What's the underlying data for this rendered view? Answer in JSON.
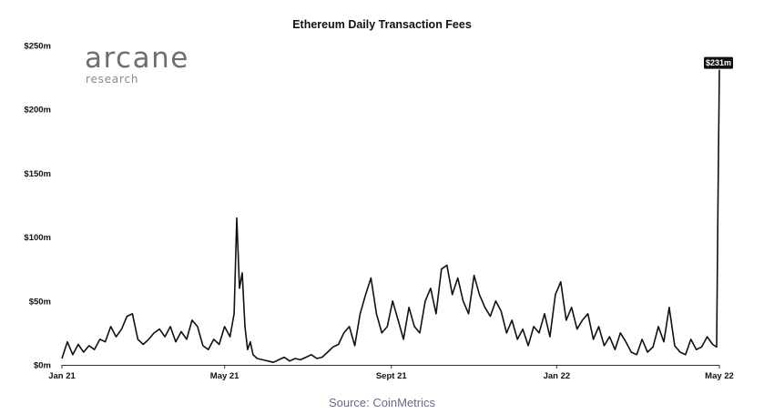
{
  "chart_data": {
    "type": "line",
    "title": "Ethereum Daily Transaction Fees",
    "xlabel": "",
    "ylabel": "",
    "x_range": [
      "2021-01-01",
      "2022-05-01"
    ],
    "ylim": [
      0,
      250
    ],
    "y_unit": "$m",
    "y_ticks": [
      {
        "value": 0,
        "label": "$0m"
      },
      {
        "value": 50,
        "label": "$50m"
      },
      {
        "value": 100,
        "label": "$100m"
      },
      {
        "value": 150,
        "label": "$150m"
      },
      {
        "value": 200,
        "label": "$200m"
      },
      {
        "value": 250,
        "label": "$250m"
      }
    ],
    "x_ticks": [
      {
        "date": "2021-01-01",
        "label": "Jan 21"
      },
      {
        "date": "2021-05-01",
        "label": "May 21"
      },
      {
        "date": "2021-09-01",
        "label": "Sept 21"
      },
      {
        "date": "2022-01-01",
        "label": "Jan 22"
      },
      {
        "date": "2022-05-01",
        "label": "May 22"
      }
    ],
    "grid": false,
    "line_color": "#111111",
    "series": [
      {
        "x": [
          "2021-01-01",
          "2021-01-05",
          "2021-01-09",
          "2021-01-13",
          "2021-01-17",
          "2021-01-21",
          "2021-01-25",
          "2021-01-29",
          "2021-02-02",
          "2021-02-06",
          "2021-02-10",
          "2021-02-14",
          "2021-02-18",
          "2021-02-22",
          "2021-02-26",
          "2021-03-02",
          "2021-03-06",
          "2021-03-10",
          "2021-03-14",
          "2021-03-18",
          "2021-03-22",
          "2021-03-26",
          "2021-03-30",
          "2021-04-03",
          "2021-04-07",
          "2021-04-11",
          "2021-04-15",
          "2021-04-19",
          "2021-04-23",
          "2021-04-27",
          "2021-05-01",
          "2021-05-05",
          "2021-05-08",
          "2021-05-10",
          "2021-05-12",
          "2021-05-14",
          "2021-05-16",
          "2021-05-18",
          "2021-05-20",
          "2021-05-22",
          "2021-05-25",
          "2021-05-29",
          "2021-06-02",
          "2021-06-06",
          "2021-06-10",
          "2021-06-14",
          "2021-06-18",
          "2021-06-22",
          "2021-06-26",
          "2021-06-30",
          "2021-07-04",
          "2021-07-08",
          "2021-07-12",
          "2021-07-16",
          "2021-07-20",
          "2021-07-24",
          "2021-07-28",
          "2021-08-01",
          "2021-08-05",
          "2021-08-09",
          "2021-08-13",
          "2021-08-17",
          "2021-08-21",
          "2021-08-25",
          "2021-08-29",
          "2021-09-02",
          "2021-09-06",
          "2021-09-10",
          "2021-09-14",
          "2021-09-18",
          "2021-09-22",
          "2021-09-26",
          "2021-09-30",
          "2021-10-04",
          "2021-10-08",
          "2021-10-12",
          "2021-10-16",
          "2021-10-20",
          "2021-10-24",
          "2021-10-28",
          "2021-11-01",
          "2021-11-05",
          "2021-11-09",
          "2021-11-13",
          "2021-11-17",
          "2021-11-21",
          "2021-11-25",
          "2021-11-29",
          "2021-12-03",
          "2021-12-07",
          "2021-12-11",
          "2021-12-15",
          "2021-12-19",
          "2021-12-23",
          "2021-12-27",
          "2021-12-31",
          "2022-01-04",
          "2022-01-08",
          "2022-01-12",
          "2022-01-16",
          "2022-01-20",
          "2022-01-24",
          "2022-01-28",
          "2022-02-01",
          "2022-02-05",
          "2022-02-09",
          "2022-02-13",
          "2022-02-17",
          "2022-02-21",
          "2022-02-25",
          "2022-03-01",
          "2022-03-05",
          "2022-03-09",
          "2022-03-13",
          "2022-03-17",
          "2022-03-21",
          "2022-03-25",
          "2022-03-29",
          "2022-04-02",
          "2022-04-06",
          "2022-04-10",
          "2022-04-14",
          "2022-04-18",
          "2022-04-22",
          "2022-04-26",
          "2022-04-29",
          "2022-04-30",
          "2022-05-01"
        ],
        "y": [
          5,
          18,
          8,
          16,
          10,
          15,
          12,
          20,
          18,
          30,
          22,
          28,
          38,
          40,
          20,
          16,
          20,
          25,
          28,
          22,
          30,
          18,
          26,
          20,
          35,
          30,
          15,
          12,
          20,
          16,
          30,
          22,
          40,
          115,
          60,
          72,
          30,
          12,
          18,
          8,
          5,
          4,
          3,
          2,
          4,
          6,
          3,
          5,
          4,
          6,
          8,
          5,
          6,
          10,
          14,
          16,
          25,
          30,
          15,
          40,
          55,
          68,
          40,
          25,
          30,
          50,
          35,
          20,
          45,
          30,
          25,
          50,
          60,
          40,
          75,
          78,
          55,
          68,
          50,
          40,
          70,
          55,
          45,
          38,
          50,
          42,
          25,
          35,
          20,
          28,
          15,
          30,
          25,
          40,
          22,
          55,
          65,
          35,
          45,
          28,
          35,
          40,
          20,
          30,
          15,
          22,
          12,
          25,
          18,
          10,
          8,
          20,
          10,
          14,
          30,
          18,
          45,
          15,
          10,
          8,
          20,
          12,
          14,
          22,
          16,
          14,
          130,
          231
        ]
      }
    ],
    "annotation": {
      "label": "$231m",
      "date": "2022-05-01",
      "value": 231
    }
  },
  "logo": {
    "name": "arcane",
    "subtitle": "research"
  },
  "source": "Source: CoinMetrics"
}
